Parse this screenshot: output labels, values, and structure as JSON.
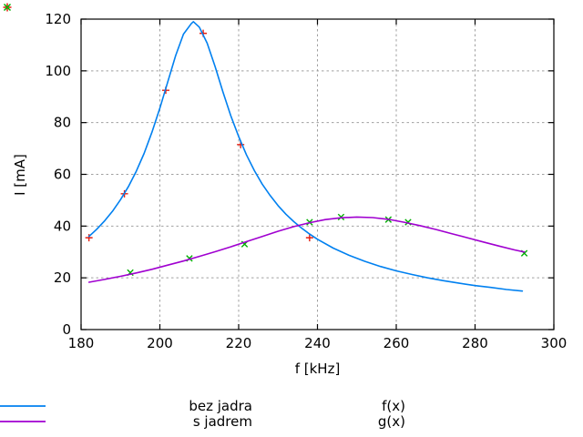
{
  "figure": {
    "background": "#ffffff",
    "border_color": "#000000",
    "grid_color": "#a0a0a0"
  },
  "chart_data": {
    "type": "line",
    "title": "",
    "xlabel": "f [kHz]",
    "ylabel": "I [mA]",
    "xlim": [
      180,
      300
    ],
    "ylim": [
      0,
      120
    ],
    "x_ticks": [
      180,
      200,
      220,
      240,
      260,
      280,
      300
    ],
    "y_ticks": [
      0,
      20,
      40,
      60,
      80,
      100,
      120
    ],
    "grid": true,
    "legend_position": "below-plot",
    "series": [
      {
        "name": "bez jadra",
        "type": "scatter",
        "marker": "plus",
        "color": "#e51e10",
        "points": [
          [
            182,
            35.5
          ],
          [
            191,
            52.5
          ],
          [
            201.5,
            92.5
          ],
          [
            211,
            114.5
          ],
          [
            220.5,
            71.5
          ],
          [
            238,
            35.5
          ]
        ]
      },
      {
        "name": "s jadrem",
        "type": "scatter",
        "marker": "cross",
        "color": "#00b000",
        "points": [
          [
            192.5,
            22
          ],
          [
            207.5,
            27.5
          ],
          [
            221.5,
            33
          ],
          [
            238,
            41.5
          ],
          [
            246,
            43.5
          ],
          [
            258,
            42.5
          ],
          [
            263,
            41.5
          ],
          [
            292.5,
            29.5
          ]
        ]
      },
      {
        "name": "f(x)",
        "type": "line",
        "color": "#0080f0",
        "points": [
          [
            182,
            36
          ],
          [
            184,
            38.8
          ],
          [
            186,
            42.1
          ],
          [
            188,
            45.8
          ],
          [
            190,
            50.2
          ],
          [
            192,
            55.2
          ],
          [
            194,
            61.2
          ],
          [
            196,
            68.1
          ],
          [
            198,
            76.3
          ],
          [
            200,
            85.6
          ],
          [
            202,
            95.8
          ],
          [
            204,
            105.9
          ],
          [
            206,
            114.2
          ],
          [
            208,
            118.3
          ],
          [
            208.5,
            119
          ],
          [
            210,
            116.9
          ],
          [
            212,
            110.7
          ],
          [
            214,
            101.7
          ],
          [
            216,
            91.9
          ],
          [
            218,
            82.7
          ],
          [
            220,
            74.6
          ],
          [
            222,
            67.5
          ],
          [
            224,
            61.4
          ],
          [
            226,
            56.2
          ],
          [
            228,
            51.8
          ],
          [
            230,
            47.9
          ],
          [
            232,
            44.6
          ],
          [
            234,
            41.7
          ],
          [
            236,
            39.2
          ],
          [
            238,
            36.9
          ],
          [
            240,
            34.9
          ],
          [
            244,
            31.5
          ],
          [
            248,
            28.7
          ],
          [
            252,
            26.4
          ],
          [
            256,
            24.4
          ],
          [
            260,
            22.7
          ],
          [
            264,
            21.3
          ],
          [
            268,
            20
          ],
          [
            272,
            18.9
          ],
          [
            276,
            17.9
          ],
          [
            280,
            17
          ],
          [
            284,
            16.3
          ],
          [
            288,
            15.5
          ],
          [
            292,
            14.9
          ]
        ]
      },
      {
        "name": "g(x)",
        "type": "line",
        "color": "#a000d0",
        "points": [
          [
            182,
            18.3
          ],
          [
            186,
            19.4
          ],
          [
            190,
            20.6
          ],
          [
            194,
            21.9
          ],
          [
            198,
            23.3
          ],
          [
            202,
            24.9
          ],
          [
            206,
            26.5
          ],
          [
            210,
            28.3
          ],
          [
            214,
            30.1
          ],
          [
            218,
            32
          ],
          [
            222,
            34
          ],
          [
            226,
            36
          ],
          [
            230,
            38
          ],
          [
            234,
            39.8
          ],
          [
            238,
            41.3
          ],
          [
            242,
            42.5
          ],
          [
            246,
            43.2
          ],
          [
            250,
            43.5
          ],
          [
            254,
            43.3
          ],
          [
            258,
            42.6
          ],
          [
            262,
            41.5
          ],
          [
            266,
            40.2
          ],
          [
            270,
            38.7
          ],
          [
            274,
            37.1
          ],
          [
            278,
            35.5
          ],
          [
            282,
            33.9
          ],
          [
            286,
            32.3
          ],
          [
            290,
            30.8
          ],
          [
            292.5,
            30
          ]
        ]
      }
    ]
  }
}
